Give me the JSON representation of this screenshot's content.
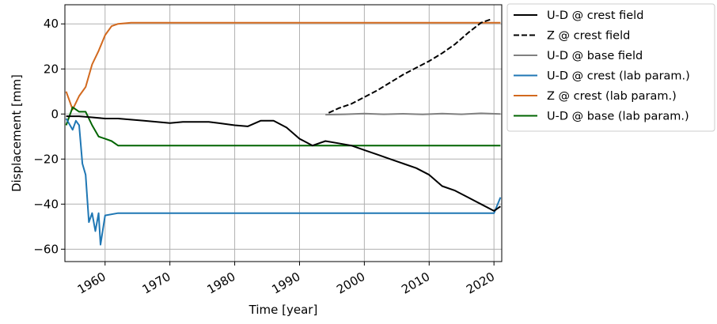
{
  "chart_data": {
    "type": "line",
    "xlabel": "Time [year]",
    "ylabel": "Displacement [mm]",
    "xlim": [
      1953.8,
      2021.2
    ],
    "ylim": [
      -65.5,
      48.5
    ],
    "xticks": [
      1960,
      1970,
      1980,
      1990,
      2000,
      2010,
      2020
    ],
    "yticks": [
      -60,
      -40,
      -20,
      0,
      20,
      40
    ],
    "grid": true,
    "legend_position": "outside top-right",
    "series": [
      {
        "name": "U-D @ crest field",
        "color": "#000000",
        "style": "solid",
        "x": [
          1954,
          1956,
          1958,
          1960,
          1962,
          1964,
          1966,
          1968,
          1970,
          1972,
          1974,
          1976,
          1977.5,
          1980,
          1982,
          1984,
          1986,
          1988,
          1990,
          1992,
          1994,
          1996,
          1998,
          2000,
          2002,
          2004,
          2006,
          2008,
          2010,
          2012,
          2014,
          2016,
          2018,
          2020,
          2021
        ],
        "y": [
          -1,
          -1,
          -1.5,
          -2,
          -2,
          -2.5,
          -3,
          -3.5,
          -4,
          -3.5,
          -3.5,
          -3.5,
          -4,
          -5,
          -5.5,
          -3,
          -3,
          -6,
          -11,
          -14,
          -12,
          -13,
          -14,
          -16,
          -18,
          -20,
          -22,
          -24,
          -27,
          -32,
          -34,
          -37,
          -40,
          -43,
          -41
        ]
      },
      {
        "name": "Z @ crest field",
        "color": "#000000",
        "style": "dashed",
        "x": [
          1994.5,
          1996,
          1998,
          2000,
          2002,
          2004,
          2006,
          2008,
          2010,
          2012,
          2014,
          2016,
          2018,
          2019.5
        ],
        "y": [
          0.5,
          2.5,
          4.5,
          7.5,
          10.5,
          14,
          17.5,
          20.5,
          23.5,
          27,
          31,
          36,
          40.5,
          42
        ]
      },
      {
        "name": "U-D @ base field",
        "color": "#808080",
        "style": "solid",
        "x": [
          1994,
          1997,
          2000,
          2003,
          2006,
          2009,
          2012,
          2015,
          2018,
          2021
        ],
        "y": [
          -0.3,
          -0.1,
          0.2,
          -0.1,
          0.1,
          -0.2,
          0.2,
          -0.1,
          0.3,
          0
        ]
      },
      {
        "name": "U-D @ crest (lab param.)",
        "color": "#1f77b4",
        "style": "solid",
        "x": [
          1954,
          1955,
          1955.5,
          1956,
          1956.5,
          1957,
          1957.5,
          1958,
          1958.5,
          1959,
          1959.3,
          1960,
          1962,
          1964,
          1966,
          1968,
          1970,
          1975,
          1980,
          1985,
          1990,
          1995,
          2000,
          2005,
          2010,
          2015,
          2020,
          2021
        ],
        "y": [
          -2,
          -7,
          -3,
          -5,
          -22,
          -27,
          -48,
          -44,
          -52,
          -44,
          -58,
          -45,
          -44,
          -44,
          -44,
          -44,
          -44,
          -44,
          -44,
          -44,
          -44,
          -44,
          -44,
          -44,
          -44,
          -44,
          -44,
          -37
        ]
      },
      {
        "name": "Z @ crest (lab param.)",
        "color": "#d2691e",
        "style": "solid",
        "x": [
          1954,
          1955,
          1956,
          1957,
          1958,
          1959,
          1960,
          1961,
          1962,
          1964,
          1966,
          1970,
          1980,
          1990,
          2000,
          2010,
          2020,
          2021
        ],
        "y": [
          10,
          2,
          8,
          12,
          22,
          28,
          35,
          39,
          40,
          40.5,
          40.5,
          40.5,
          40.5,
          40.5,
          40.5,
          40.5,
          40.5,
          40.5
        ]
      },
      {
        "name": "U-D @ base (lab param.)",
        "color": "#006400",
        "style": "solid",
        "x": [
          1954,
          1955,
          1956,
          1957,
          1958,
          1959,
          1960,
          1961,
          1962,
          1964,
          1970,
          1980,
          1990,
          2000,
          2010,
          2020,
          2021
        ],
        "y": [
          -5,
          3,
          1,
          1,
          -5,
          -10,
          -11,
          -12,
          -14,
          -14,
          -14,
          -14,
          -14,
          -14,
          -14,
          -14,
          -14
        ]
      }
    ]
  }
}
